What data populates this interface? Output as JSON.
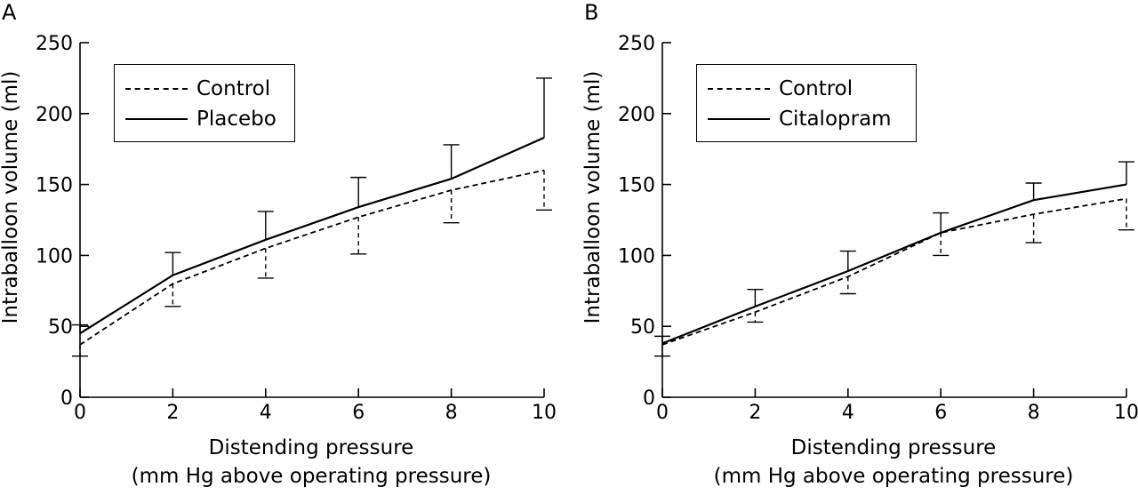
{
  "chart_data": [
    {
      "type": "line",
      "panel_label": "A",
      "xlabel_line1": "Distending pressure",
      "xlabel_line2": "(mm Hg above operating pressure)",
      "ylabel": "Intraballoon volume (ml)",
      "x": [
        0,
        2,
        4,
        6,
        8,
        10
      ],
      "xticks": [
        "0",
        "2",
        "4",
        "6",
        "8",
        "10"
      ],
      "yticks": [
        "0",
        "50",
        "100",
        "150",
        "200",
        "250"
      ],
      "xlim": [
        0,
        10
      ],
      "ylim": [
        0,
        250
      ],
      "grid": false,
      "legend_position": "top-left",
      "series": [
        {
          "name": "Control",
          "style": "dashed",
          "values": [
            37,
            80,
            105,
            127,
            146,
            160
          ],
          "error": [
            8,
            16,
            21,
            26,
            23,
            28
          ],
          "error_direction": "down"
        },
        {
          "name": "Placebo",
          "style": "solid",
          "values": [
            45,
            86,
            111,
            134,
            154,
            183
          ],
          "error": [
            6,
            16,
            20,
            21,
            24,
            42
          ],
          "error_direction": "up"
        }
      ]
    },
    {
      "type": "line",
      "panel_label": "B",
      "xlabel_line1": "Distending pressure",
      "xlabel_line2": "(mm Hg above operating pressure)",
      "ylabel": "Intraballoon volume (ml)",
      "x": [
        0,
        2,
        4,
        6,
        8,
        10
      ],
      "xticks": [
        "0",
        "2",
        "4",
        "6",
        "8",
        "10"
      ],
      "yticks": [
        "0",
        "50",
        "100",
        "150",
        "200",
        "250"
      ],
      "xlim": [
        0,
        10
      ],
      "ylim": [
        0,
        250
      ],
      "grid": false,
      "legend_position": "top-left",
      "series": [
        {
          "name": "Control",
          "style": "dashed",
          "values": [
            37,
            60,
            85,
            116,
            129,
            140
          ],
          "error": [
            8,
            7,
            12,
            16,
            20,
            22
          ],
          "error_direction": "down"
        },
        {
          "name": "Citalopram",
          "style": "solid",
          "values": [
            38,
            64,
            89,
            116,
            139,
            150
          ],
          "error": [
            5,
            12,
            14,
            14,
            12,
            16
          ],
          "error_direction": "up"
        }
      ]
    }
  ]
}
